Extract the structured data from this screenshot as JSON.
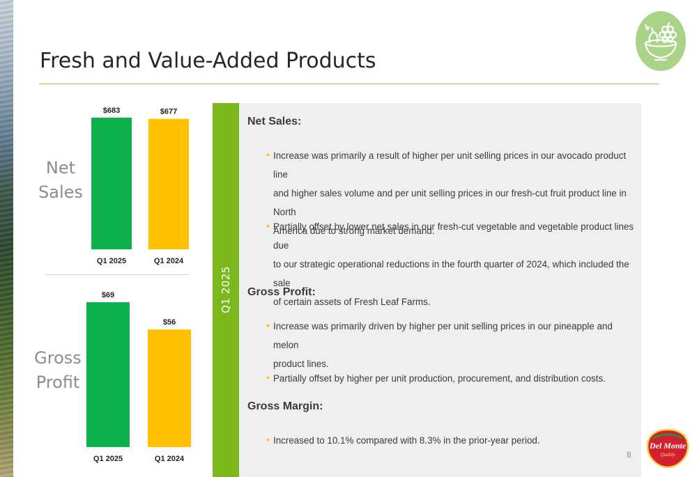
{
  "slide": {
    "title": "Fresh and Value-Added Products",
    "page_number": "8",
    "band_label": "Q1 2025"
  },
  "left_labels": {
    "net_line1": "Net",
    "net_line2": "Sales",
    "gross_line1": "Gross",
    "gross_line2": "Profit"
  },
  "logo": {
    "brand": "Del Monte",
    "sub": "Quality"
  },
  "icons": {
    "top_right": "fruit-bowl-icon",
    "bullet": "bullet-dot-icon"
  },
  "colors": {
    "accent_green": "#7ab81e",
    "bar_green": "#0db14b",
    "bar_gold": "#ffc000",
    "icon_circle": "#a9d387",
    "logo_red": "#d3202f"
  },
  "chart_data": [
    {
      "type": "bar",
      "categories": [
        "Q1 2025",
        "Q1 2024"
      ],
      "values": [
        683,
        677
      ],
      "value_labels": [
        "$683",
        "$677"
      ],
      "ylim": [
        0,
        683
      ]
    },
    {
      "type": "bar",
      "categories": [
        "Q1 2025",
        "Q1 2024"
      ],
      "values": [
        69,
        56
      ],
      "value_labels": [
        "$69",
        "$56"
      ],
      "ylim": [
        0,
        69
      ]
    }
  ],
  "sections": [
    {
      "heading": "Net Sales:",
      "bullets": [
        [
          "Increase was primarily a result of higher per unit selling prices in our avocado product line",
          "and higher sales volume and per unit selling prices in our fresh-cut fruit product line in North",
          "America due to strong market demand."
        ],
        [
          "Partially offset by lower net sales in our fresh-cut vegetable and vegetable product lines due",
          "to our strategic operational reductions in the fourth quarter of 2024, which included the sale",
          "of certain assets of Fresh Leaf Farms."
        ]
      ]
    },
    {
      "heading": "Gross Profit:",
      "bullets": [
        [
          "Increase was primarily driven by higher per unit selling prices in our pineapple and melon",
          "product lines."
        ],
        [
          "Partially offset by higher per unit  production, procurement, and distribution costs."
        ]
      ]
    },
    {
      "heading": "Gross Margin:",
      "bullets": [
        [
          "Increased to 10.1% compared with 8.3% in the prior-year period."
        ]
      ]
    }
  ]
}
